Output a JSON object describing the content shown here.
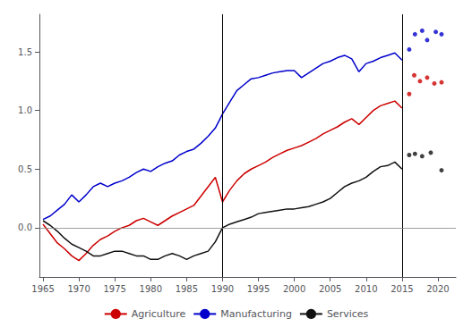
{
  "chart_data": {
    "type": "line",
    "xlim": [
      1964.5,
      2022.5
    ],
    "ylim": [
      -0.42,
      1.82
    ],
    "xticks": [
      1965,
      1970,
      1975,
      1980,
      1985,
      1990,
      1995,
      2000,
      2005,
      2010,
      2015,
      2020
    ],
    "yticks": [
      {
        "value": 0.0,
        "label": "0.0"
      },
      {
        "value": 0.5,
        "label": "0.5"
      },
      {
        "value": 1.0,
        "label": "1.0"
      },
      {
        "value": 1.5,
        "label": "1.5"
      }
    ],
    "vlines": [
      1990,
      2015
    ],
    "hlines": [
      0
    ],
    "grid": false,
    "legend": "bottom",
    "series": [
      {
        "name": "Agriculture",
        "type": "line",
        "color": "#cc0000",
        "x": [
          1965,
          1966,
          1967,
          1968,
          1969,
          1970,
          1971,
          1972,
          1973,
          1974,
          1975,
          1976,
          1977,
          1978,
          1979,
          1980,
          1981,
          1982,
          1983,
          1984,
          1985,
          1986,
          1987,
          1988,
          1989,
          1990,
          1991,
          1992,
          1993,
          1994,
          1995,
          1996,
          1997,
          1998,
          1999,
          2000,
          2001,
          2002,
          2003,
          2004,
          2005,
          2006,
          2007,
          2008,
          2009,
          2010,
          2011,
          2012,
          2013,
          2014,
          2015
        ],
        "values": [
          0.03,
          -0.05,
          -0.13,
          -0.18,
          -0.24,
          -0.28,
          -0.22,
          -0.15,
          -0.1,
          -0.07,
          -0.03,
          0.0,
          0.02,
          0.06,
          0.08,
          0.05,
          0.02,
          0.06,
          0.1,
          0.13,
          0.16,
          0.19,
          0.27,
          0.35,
          0.43,
          0.22,
          0.32,
          0.4,
          0.46,
          0.5,
          0.53,
          0.56,
          0.6,
          0.63,
          0.66,
          0.68,
          0.7,
          0.73,
          0.76,
          0.8,
          0.83,
          0.86,
          0.9,
          0.93,
          0.88,
          0.94,
          1.0,
          1.04,
          1.06,
          1.08,
          1.02
        ]
      },
      {
        "name": "Manufacturing",
        "type": "line",
        "color": "#0000cc",
        "x": [
          1965,
          1966,
          1967,
          1968,
          1969,
          1970,
          1971,
          1972,
          1973,
          1974,
          1975,
          1976,
          1977,
          1978,
          1979,
          1980,
          1981,
          1982,
          1983,
          1984,
          1985,
          1986,
          1987,
          1988,
          1989,
          1990,
          1991,
          1992,
          1993,
          1994,
          1995,
          1996,
          1997,
          1998,
          1999,
          2000,
          2001,
          2002,
          2003,
          2004,
          2005,
          2006,
          2007,
          2008,
          2009,
          2010,
          2011,
          2012,
          2013,
          2014,
          2015
        ],
        "values": [
          0.07,
          0.1,
          0.15,
          0.2,
          0.28,
          0.22,
          0.28,
          0.35,
          0.38,
          0.35,
          0.38,
          0.4,
          0.43,
          0.47,
          0.5,
          0.48,
          0.52,
          0.55,
          0.57,
          0.62,
          0.65,
          0.67,
          0.72,
          0.78,
          0.85,
          0.97,
          1.07,
          1.17,
          1.22,
          1.27,
          1.28,
          1.3,
          1.32,
          1.33,
          1.34,
          1.34,
          1.28,
          1.32,
          1.36,
          1.4,
          1.42,
          1.45,
          1.47,
          1.44,
          1.33,
          1.4,
          1.42,
          1.45,
          1.47,
          1.49,
          1.43
        ]
      },
      {
        "name": "Services",
        "type": "line",
        "color": "#111111",
        "x": [
          1965,
          1966,
          1967,
          1968,
          1969,
          1970,
          1971,
          1972,
          1973,
          1974,
          1975,
          1976,
          1977,
          1978,
          1979,
          1980,
          1981,
          1982,
          1983,
          1984,
          1985,
          1986,
          1987,
          1988,
          1989,
          1990,
          1991,
          1992,
          1993,
          1994,
          1995,
          1996,
          1997,
          1998,
          1999,
          2000,
          2001,
          2002,
          2003,
          2004,
          2005,
          2006,
          2007,
          2008,
          2009,
          2010,
          2011,
          2012,
          2013,
          2014,
          2015
        ],
        "values": [
          0.06,
          0.02,
          -0.03,
          -0.09,
          -0.14,
          -0.17,
          -0.2,
          -0.24,
          -0.24,
          -0.22,
          -0.2,
          -0.2,
          -0.22,
          -0.24,
          -0.24,
          -0.27,
          -0.27,
          -0.24,
          -0.22,
          -0.24,
          -0.27,
          -0.24,
          -0.22,
          -0.2,
          -0.12,
          0.0,
          0.03,
          0.05,
          0.07,
          0.09,
          0.12,
          0.13,
          0.14,
          0.15,
          0.16,
          0.16,
          0.17,
          0.18,
          0.2,
          0.22,
          0.25,
          0.3,
          0.35,
          0.38,
          0.4,
          0.43,
          0.48,
          0.52,
          0.53,
          0.56,
          0.5
        ]
      },
      {
        "type": "scatter",
        "marker": "circle",
        "color": "#cc0000",
        "x": [
          2016,
          2016.7,
          2017.5,
          2018.5,
          2019.5,
          2020.5
        ],
        "values": [
          1.14,
          1.3,
          1.25,
          1.28,
          1.23,
          1.24
        ]
      },
      {
        "type": "scatter",
        "marker": "circle",
        "color": "#0000cc",
        "x": [
          2016,
          2016.8,
          2017.8,
          2018.5,
          2019.7,
          2020.5
        ],
        "values": [
          1.52,
          1.65,
          1.68,
          1.6,
          1.67,
          1.65
        ]
      },
      {
        "type": "scatter",
        "marker": "circle",
        "color": "#111111",
        "x": [
          2016,
          2016.8,
          2017.8,
          2019,
          2020.5
        ],
        "values": [
          0.62,
          0.63,
          0.61,
          0.64,
          0.49
        ]
      }
    ]
  }
}
